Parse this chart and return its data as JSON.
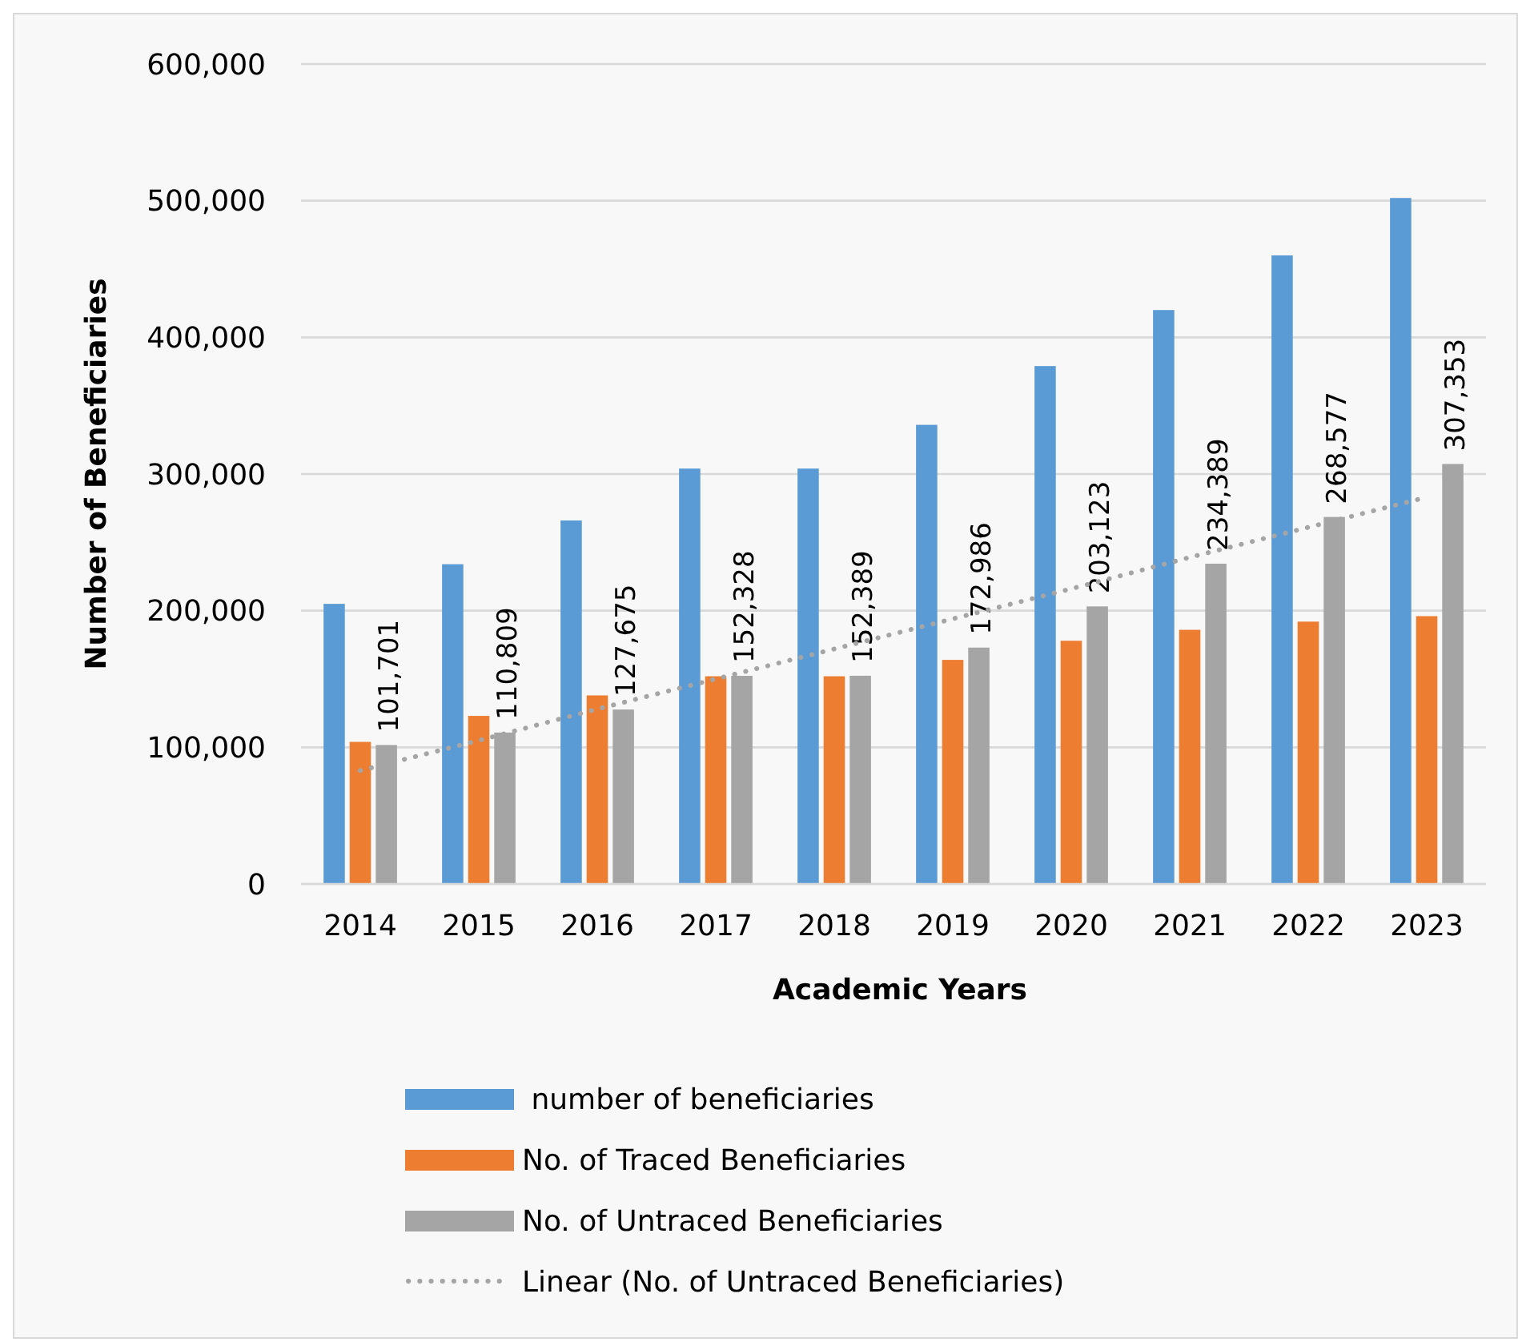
{
  "chart_data": {
    "type": "bar",
    "xlabel": "Academic Years",
    "ylabel": "Number of Beneficiaries",
    "categories": [
      "2014",
      "2015",
      "2016",
      "2017",
      "2018",
      "2019",
      "2020",
      "2021",
      "2022",
      "2023"
    ],
    "series": [
      {
        "name": " number of beneficiaries",
        "color": "#5b9bd5",
        "values": [
          205000,
          234000,
          266000,
          304000,
          304000,
          336000,
          379000,
          420000,
          460000,
          502000
        ]
      },
      {
        "name": "No. of Traced Beneficiaries",
        "color": "#ed7d31",
        "values": [
          104000,
          123000,
          138000,
          152000,
          152000,
          164000,
          178000,
          186000,
          192000,
          196000
        ]
      },
      {
        "name": "No. of Untraced Beneficiaries",
        "color": "#a5a5a5",
        "values": [
          101701,
          110809,
          127675,
          152328,
          152389,
          172986,
          203123,
          234389,
          268577,
          307353
        ],
        "value_labels": [
          "101,701",
          "110,809",
          "127,675",
          "152,328",
          "152,389",
          "172,986",
          "203,123",
          "234,389",
          "268,577",
          "307,353"
        ]
      },
      {
        "name": "Linear (No. of Untraced Beneficiaries)",
        "type": "line",
        "color": "#a5a5a5",
        "line_style": "dotted",
        "values": [
          83000,
          105000,
          128000,
          150000,
          172000,
          194000,
          216000,
          239000,
          261000,
          283000
        ]
      }
    ],
    "ylim": [
      0,
      600000
    ],
    "yticks": [
      0,
      {
        "value": 100000,
        "label": "100,000"
      },
      {
        "value": 200000,
        "label": "200,000"
      },
      {
        "value": 300000,
        "label": "300,000"
      },
      {
        "value": 400000,
        "label": "400,000"
      },
      {
        "value": 500000,
        "label": "500,000"
      },
      {
        "value": 600000,
        "label": "600,000"
      }
    ],
    "grid": "y",
    "legend": "bottom"
  }
}
